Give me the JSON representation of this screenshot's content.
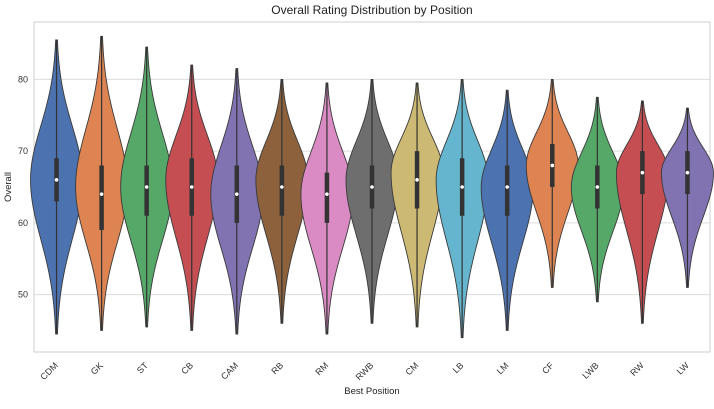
{
  "chart_data": {
    "type": "violin",
    "title": "Overall Rating Distribution by Position",
    "xlabel": "Best Position",
    "ylabel": "Overall",
    "ylim": [
      42,
      88
    ],
    "yticks": [
      50,
      60,
      70,
      80
    ],
    "grid": true,
    "categories": [
      "CDM",
      "GK",
      "ST",
      "CB",
      "CAM",
      "RB",
      "RM",
      "RWB",
      "CM",
      "LB",
      "LM",
      "CF",
      "LWB",
      "RW",
      "LW"
    ],
    "series": [
      {
        "category": "CDM",
        "color": "#4c72b0",
        "min": 44.5,
        "q1": 63,
        "median": 66,
        "q3": 69,
        "max": 85.5,
        "peak": 66
      },
      {
        "category": "GK",
        "color": "#dd8452",
        "min": 45,
        "q1": 59,
        "median": 64,
        "q3": 68,
        "max": 86,
        "peak": 65
      },
      {
        "category": "ST",
        "color": "#55a868",
        "min": 45.5,
        "q1": 61,
        "median": 65,
        "q3": 68,
        "max": 84.5,
        "peak": 65
      },
      {
        "category": "CB",
        "color": "#c44e52",
        "min": 45,
        "q1": 61,
        "median": 65,
        "q3": 69,
        "max": 82,
        "peak": 66
      },
      {
        "category": "CAM",
        "color": "#8172b2",
        "min": 44.5,
        "q1": 60,
        "median": 64,
        "q3": 68,
        "max": 81.5,
        "peak": 64
      },
      {
        "category": "RB",
        "color": "#8c613c",
        "min": 46,
        "q1": 61,
        "median": 65,
        "q3": 68,
        "max": 80,
        "peak": 66
      },
      {
        "category": "RM",
        "color": "#da8bc3",
        "min": 44.5,
        "q1": 60,
        "median": 64,
        "q3": 67,
        "max": 79.5,
        "peak": 64
      },
      {
        "category": "RWB",
        "color": "#6e6e6e",
        "min": 46,
        "q1": 62,
        "median": 65,
        "q3": 68,
        "max": 80,
        "peak": 66
      },
      {
        "category": "CM",
        "color": "#ccb974",
        "min": 45.5,
        "q1": 62,
        "median": 66,
        "q3": 70,
        "max": 79.5,
        "peak": 67
      },
      {
        "category": "LB",
        "color": "#64b5cd",
        "min": 44,
        "q1": 61,
        "median": 65,
        "q3": 69,
        "max": 80,
        "peak": 66
      },
      {
        "category": "LM",
        "color": "#4c72b0",
        "min": 45,
        "q1": 61,
        "median": 65,
        "q3": 68,
        "max": 78.5,
        "peak": 65
      },
      {
        "category": "CF",
        "color": "#dd8452",
        "min": 51,
        "q1": 65,
        "median": 68,
        "q3": 71,
        "max": 80,
        "peak": 68
      },
      {
        "category": "LWB",
        "color": "#55a868",
        "min": 49,
        "q1": 62,
        "median": 65,
        "q3": 68,
        "max": 77.5,
        "peak": 65
      },
      {
        "category": "RW",
        "color": "#c44e52",
        "min": 46,
        "q1": 64,
        "median": 67,
        "q3": 70,
        "max": 77,
        "peak": 67
      },
      {
        "category": "LW",
        "color": "#8172b2",
        "min": 51,
        "q1": 64,
        "median": 67,
        "q3": 70,
        "max": 76,
        "peak": 67
      }
    ]
  }
}
